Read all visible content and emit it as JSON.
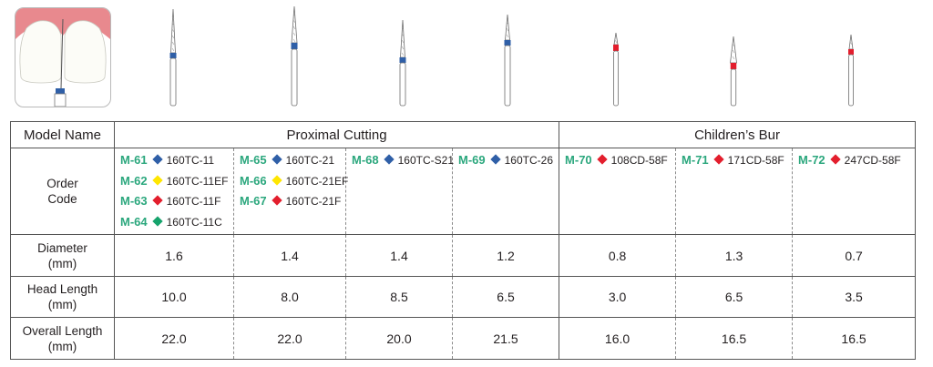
{
  "colors": {
    "blue": "#2f5fa7",
    "yellow": "#ffe600",
    "red": "#e31e2d",
    "green": "#16a36c",
    "model_label": "#2ba77d",
    "gum": "#e8898e"
  },
  "illustration": {
    "thumbnail_icon": "tooth-gap-bur-icon",
    "burs": [
      {
        "band_color": "#2f5fa7"
      },
      {
        "band_color": "#2f5fa7"
      },
      {
        "band_color": "#2f5fa7"
      },
      {
        "band_color": "#2f5fa7"
      },
      {
        "band_color": "#e31e2d"
      },
      {
        "band_color": "#e31e2d"
      },
      {
        "band_color": "#e31e2d"
      }
    ]
  },
  "table": {
    "model_name_label": "Model Name",
    "group_proximal": "Proximal Cutting",
    "group_children": "Children’s Bur",
    "order_code_label_1": "Order",
    "order_code_label_2": "Code",
    "diameter_label_1": "Diameter",
    "diameter_label_2": "(mm)",
    "head_label_1": "Head Length",
    "head_label_2": "(mm)",
    "overall_label_1": "Overall Length",
    "overall_label_2": "(mm)",
    "columns": [
      {
        "codes": [
          {
            "model": "M-61",
            "color": "#2f5fa7",
            "code": "160TC-11"
          },
          {
            "model": "M-62",
            "color": "#ffe600",
            "code": "160TC-11EF"
          },
          {
            "model": "M-63",
            "color": "#e31e2d",
            "code": "160TC-11F"
          },
          {
            "model": "M-64",
            "color": "#16a36c",
            "code": "160TC-11C"
          }
        ],
        "diameter": "1.6",
        "head_length": "10.0",
        "overall_length": "22.0"
      },
      {
        "codes": [
          {
            "model": "M-65",
            "color": "#2f5fa7",
            "code": "160TC-21"
          },
          {
            "model": "M-66",
            "color": "#ffe600",
            "code": "160TC-21EF"
          },
          {
            "model": "M-67",
            "color": "#e31e2d",
            "code": "160TC-21F"
          }
        ],
        "diameter": "1.4",
        "head_length": "8.0",
        "overall_length": "22.0"
      },
      {
        "codes": [
          {
            "model": "M-68",
            "color": "#2f5fa7",
            "code": "160TC-S21"
          }
        ],
        "diameter": "1.4",
        "head_length": "8.5",
        "overall_length": "20.0"
      },
      {
        "codes": [
          {
            "model": "M-69",
            "color": "#2f5fa7",
            "code": "160TC-26"
          }
        ],
        "diameter": "1.2",
        "head_length": "6.5",
        "overall_length": "21.5"
      },
      {
        "codes": [
          {
            "model": "M-70",
            "color": "#e31e2d",
            "code": "108CD-58F"
          }
        ],
        "diameter": "0.8",
        "head_length": "3.0",
        "overall_length": "16.0"
      },
      {
        "codes": [
          {
            "model": "M-71",
            "color": "#e31e2d",
            "code": "171CD-58F"
          }
        ],
        "diameter": "1.3",
        "head_length": "6.5",
        "overall_length": "16.5"
      },
      {
        "codes": [
          {
            "model": "M-72",
            "color": "#e31e2d",
            "code": "247CD-58F"
          }
        ],
        "diameter": "0.7",
        "head_length": "3.5",
        "overall_length": "16.5"
      }
    ]
  }
}
